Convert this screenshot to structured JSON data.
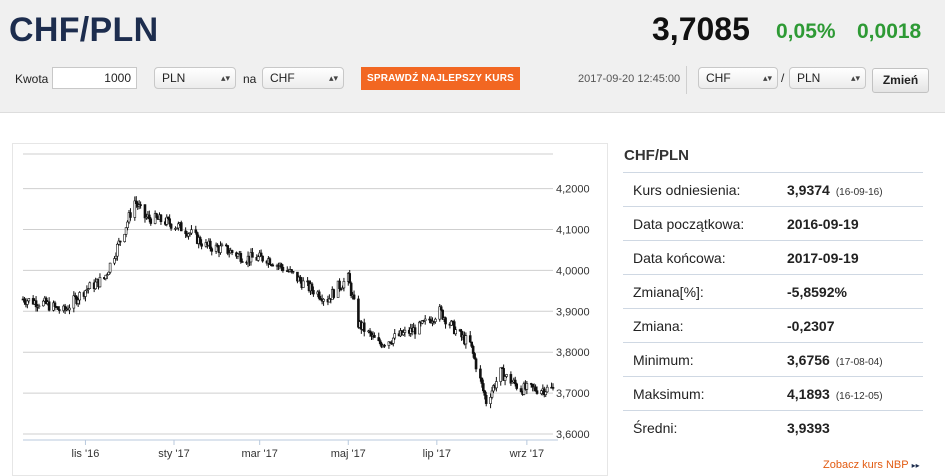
{
  "header": {
    "pair": "CHF/PLN",
    "rate": "3,7085",
    "change_pct": "0,05%",
    "change_abs": "0,0018"
  },
  "converter": {
    "amount_label": "Kwota",
    "amount_value": "1000",
    "from_currency": "PLN",
    "to_label": "na",
    "to_currency": "CHF",
    "cta_label": "SPRAWDŹ NAJLEPSZY KURS"
  },
  "pair_selector": {
    "timestamp": "2017-09-20 12:45:00",
    "base": "CHF",
    "separator": "/",
    "quote": "PLN",
    "change_button": "Zmień"
  },
  "stats": {
    "title": "CHF/PLN",
    "rows": [
      {
        "label": "Kurs odniesienia:",
        "value": "3,9374",
        "date": "(16-09-16)"
      },
      {
        "label": "Data początkowa:",
        "value": "2016-09-19",
        "date": ""
      },
      {
        "label": "Data końcowa:",
        "value": "2017-09-19",
        "date": ""
      },
      {
        "label": "Zmiana[%]:",
        "value": "-5,8592%",
        "date": ""
      },
      {
        "label": "Zmiana:",
        "value": "-0,2307",
        "date": ""
      },
      {
        "label": "Minimum:",
        "value": "3,6756",
        "date": "(17-08-04)"
      },
      {
        "label": "Maksimum:",
        "value": "4,1893",
        "date": "(16-12-05)"
      },
      {
        "label": "Średni:",
        "value": "3,9393",
        "date": ""
      }
    ],
    "nbp_link": "Zobacz kurs NBP",
    "nbp_arrow": "▸▸"
  },
  "colors": {
    "accent_orange": "#f26722",
    "positive_green": "#2e9a35",
    "title_navy": "#1d2d4e",
    "candle": "#111111"
  },
  "chart_data": {
    "type": "line",
    "x": [
      "2016-09-19",
      "2016-10-03",
      "2016-10-17",
      "2016-10-31",
      "2016-11-14",
      "2016-11-28",
      "2016-12-05",
      "2016-12-12",
      "2016-12-26",
      "2017-01-09",
      "2017-01-23",
      "2017-02-06",
      "2017-02-20",
      "2017-03-06",
      "2017-03-20",
      "2017-04-03",
      "2017-04-17",
      "2017-04-24",
      "2017-05-01",
      "2017-05-08",
      "2017-05-22",
      "2017-06-05",
      "2017-06-19",
      "2017-07-03",
      "2017-07-17",
      "2017-07-24",
      "2017-08-04",
      "2017-08-14",
      "2017-08-28",
      "2017-09-11",
      "2017-09-19"
    ],
    "values": [
      3.93,
      3.92,
      3.9,
      3.95,
      3.98,
      4.1,
      4.17,
      4.13,
      4.12,
      4.1,
      4.06,
      4.05,
      4.03,
      4.03,
      4.0,
      3.96,
      3.93,
      3.96,
      3.98,
      3.87,
      3.82,
      3.84,
      3.86,
      3.9,
      3.84,
      3.82,
      3.68,
      3.75,
      3.71,
      3.71,
      3.71
    ],
    "x_ticks": [
      "lis '16",
      "sty '17",
      "mar '17",
      "maj '17",
      "lip '17",
      "wrz '17"
    ],
    "y_ticks": [
      "4,2000",
      "4,1000",
      "4,0000",
      "3,9000",
      "3,8000",
      "3,7000",
      "3,6000"
    ],
    "ylim": [
      3.6,
      4.25
    ],
    "grid": true,
    "legend": "none"
  }
}
